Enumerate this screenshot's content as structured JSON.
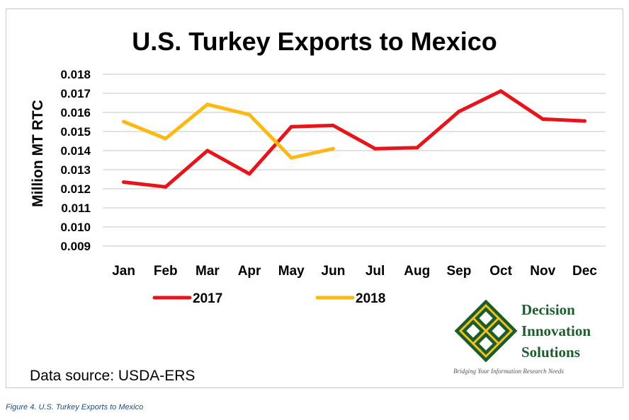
{
  "chart_data": {
    "type": "line",
    "title": "U.S. Turkey Exports to Mexico",
    "ylabel": "Million MT RTC",
    "xlabel": "",
    "categories": [
      "Jan",
      "Feb",
      "Mar",
      "Apr",
      "May",
      "Jun",
      "Jul",
      "Aug",
      "Sep",
      "Oct",
      "Nov",
      "Dec"
    ],
    "yticks": [
      "0.009",
      "0.010",
      "0.011",
      "0.012",
      "0.013",
      "0.014",
      "0.015",
      "0.016",
      "0.017",
      "0.018"
    ],
    "ylim": [
      0.009,
      0.018
    ],
    "grid": true,
    "legend_position": "bottom-left",
    "series": [
      {
        "name": "2017",
        "color": "#e8141b",
        "values": [
          0.01235,
          0.0121,
          0.014,
          0.01278,
          0.01525,
          0.01532,
          0.0141,
          0.01415,
          0.01605,
          0.01712,
          0.01565,
          0.01555
        ]
      },
      {
        "name": "2018",
        "color": "#fdb913",
        "values": [
          0.01552,
          0.01463,
          0.01642,
          0.01588,
          0.01362,
          0.0141,
          null,
          null,
          null,
          null,
          null,
          null
        ]
      }
    ]
  },
  "source": "Data source: USDA-ERS",
  "caption": "Figure 4. U.S. Turkey Exports to Mexico",
  "logo": {
    "line1": "Decision",
    "line2": "Innovation",
    "line3": "Solutions",
    "tagline": "Bridging Your Information Research Needs",
    "color": "#1d5c2c",
    "accent": "#f2c21b"
  }
}
